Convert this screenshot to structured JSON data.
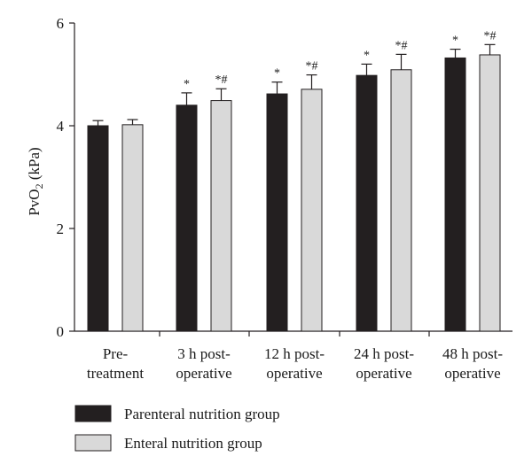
{
  "chart_data": {
    "type": "bar",
    "ylabel_main": "PvO",
    "ylabel_sub": "2",
    "ylabel_unit": " (kPa)",
    "ylim": [
      0,
      6
    ],
    "yticks": [
      "0",
      "2",
      "4",
      "6"
    ],
    "categories": [
      [
        "Pre-",
        "treatment"
      ],
      [
        "3 h post-",
        "operative"
      ],
      [
        "12 h post-",
        "operative"
      ],
      [
        "24 h post-",
        "operative"
      ],
      [
        "48 h post-",
        "operative"
      ]
    ],
    "series": [
      {
        "name": "Parenteral nutrition group",
        "color": "#231f20",
        "values": [
          4.0,
          4.4,
          4.62,
          4.98,
          5.32
        ],
        "errors": [
          0.1,
          0.24,
          0.23,
          0.22,
          0.17
        ],
        "annotations": [
          "",
          "*",
          "*",
          "*",
          "*"
        ]
      },
      {
        "name": "Enteral nutrition group",
        "color": "#d9d9d9",
        "values": [
          4.02,
          4.49,
          4.71,
          5.09,
          5.38
        ],
        "errors": [
          0.1,
          0.23,
          0.28,
          0.3,
          0.2
        ],
        "annotations": [
          "",
          "*#",
          "*#",
          "*#",
          "*#"
        ]
      }
    ],
    "legend_placement": "bottom-left"
  }
}
